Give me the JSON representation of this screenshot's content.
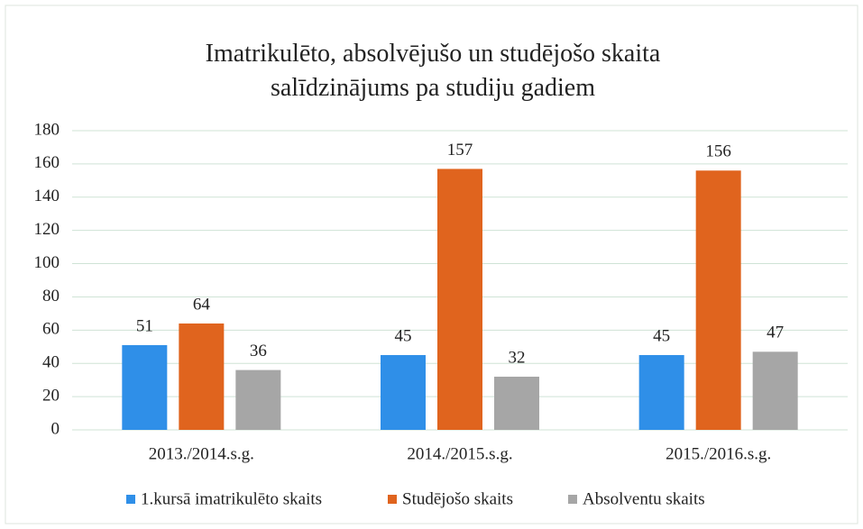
{
  "chart_data": {
    "type": "bar",
    "title": "Imatrikulēto, absolvējušo un studējošo skaita salīdzinājums pa studiju gadiem",
    "categories": [
      "2013./2014.s.g.",
      "2014./2015.s.g.",
      "2015./2016.s.g."
    ],
    "series": [
      {
        "name": "1.kursā imatrikulēto skaits",
        "color": "#2f8fe8",
        "values": [
          51,
          45,
          45
        ]
      },
      {
        "name": "Studējošo skaits",
        "color": "#e0641e",
        "values": [
          64,
          157,
          156
        ]
      },
      {
        "name": "Absolventu skaits",
        "color": "#a6a6a6",
        "values": [
          36,
          32,
          47
        ]
      }
    ],
    "ylim": [
      0,
      180
    ],
    "yticks": [
      0,
      20,
      40,
      60,
      80,
      100,
      120,
      140,
      160,
      180
    ],
    "grid": true,
    "legend": "bottom"
  }
}
